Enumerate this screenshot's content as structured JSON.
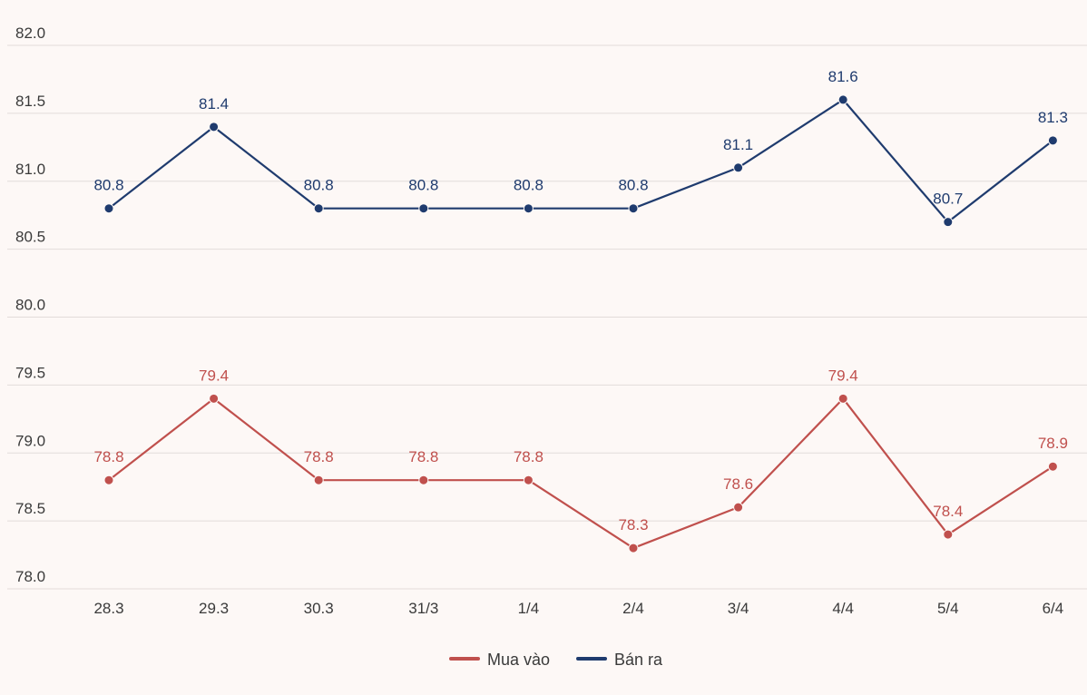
{
  "chart_data": {
    "type": "line",
    "categories": [
      "28.3",
      "29.3",
      "30.3",
      "31/3",
      "1/4",
      "2/4",
      "3/4",
      "4/4",
      "5/4",
      "6/4"
    ],
    "series": [
      {
        "name": "Mua vào",
        "color": "#c0504d",
        "values": [
          78.8,
          79.4,
          78.8,
          78.8,
          78.8,
          78.3,
          78.6,
          79.4,
          78.4,
          78.9
        ],
        "labels": [
          "78.8",
          "79.4",
          "78.8",
          "78.8",
          "78.8",
          "78.3",
          "78.6",
          "79.4",
          "78.4",
          "78.9"
        ]
      },
      {
        "name": "Bán ra",
        "color": "#1f3b6e",
        "values": [
          80.8,
          81.4,
          80.8,
          80.8,
          80.8,
          80.8,
          81.1,
          81.6,
          80.7,
          81.3
        ],
        "labels": [
          "80.8",
          "81.4",
          "80.8",
          "80.8",
          "80.8",
          "80.8",
          "81.1",
          "81.6",
          "80.7",
          "81.3"
        ]
      }
    ],
    "yticks": [
      78.0,
      78.5,
      79.0,
      79.5,
      80.0,
      80.5,
      81.0,
      81.5,
      82.0
    ],
    "ytick_labels": [
      "78.0",
      "78.5",
      "79.0",
      "79.5",
      "80.0",
      "80.5",
      "81.0",
      "81.5",
      "82.0"
    ],
    "ylim": [
      78.0,
      82.0
    ],
    "grid": true,
    "legend_position": "bottom-center"
  }
}
